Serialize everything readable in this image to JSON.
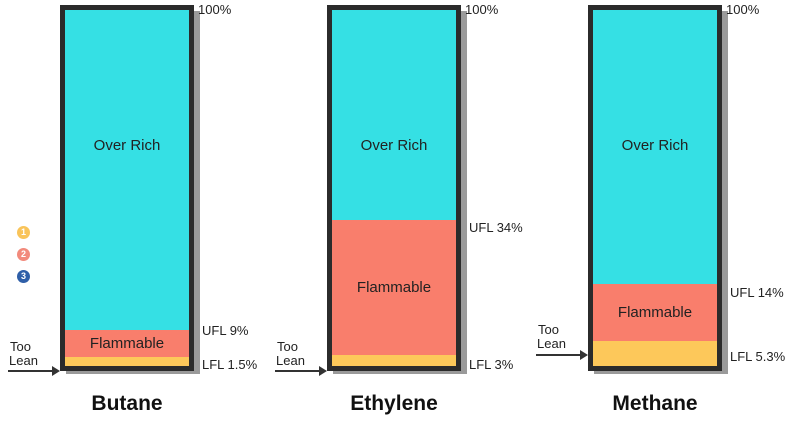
{
  "badges": [
    {
      "label": "1",
      "color": "#f9c45a"
    },
    {
      "label": "2",
      "color": "#f28a7c"
    },
    {
      "label": "3",
      "color": "#2f5fa8"
    }
  ],
  "colors": {
    "over_rich": "#35e0e4",
    "flammable": "#f97e6c",
    "too_lean": "#fdc85a",
    "frame": "#2b2b2b"
  },
  "columns": [
    {
      "title": "Butane",
      "top_label": "100%",
      "over_rich_label": "Over Rich",
      "flammable_label": "Flammable",
      "ufl_label": "UFL 9%",
      "lfl_label": "LFL 1.5%",
      "too_lean_line1": "Too",
      "too_lean_line2": "Lean",
      "ufl_fraction": 0.1,
      "lfl_fraction": 0.026
    },
    {
      "title": "Ethylene",
      "top_label": "100%",
      "over_rich_label": "Over Rich",
      "flammable_label": "Flammable",
      "ufl_label": "UFL 34%",
      "lfl_label": "LFL 3%",
      "too_lean_line1": "Too",
      "too_lean_line2": "Lean",
      "ufl_fraction": 0.41,
      "lfl_fraction": 0.03
    },
    {
      "title": "Methane",
      "top_label": "100%",
      "over_rich_label": "Over Rich",
      "flammable_label": "Flammable",
      "ufl_label": "UFL 14%",
      "lfl_label": "LFL 5.3%",
      "too_lean_line1": "Too",
      "too_lean_line2": "Lean",
      "ufl_fraction": 0.23,
      "lfl_fraction": 0.07
    }
  ]
}
